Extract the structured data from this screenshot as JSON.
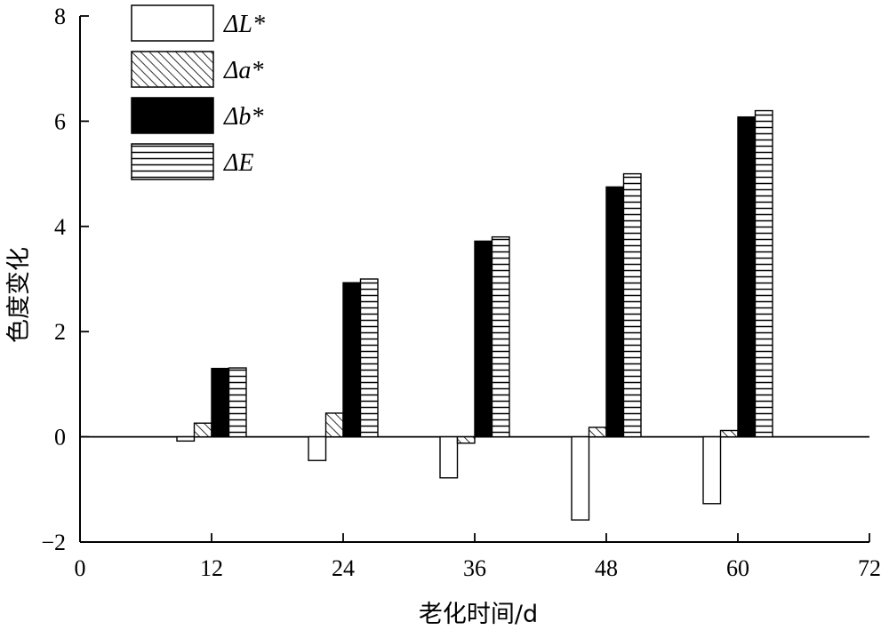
{
  "chart_data": {
    "type": "bar",
    "xlabel": "老化时间/d",
    "ylabel": "色度变化",
    "xlim": [
      0,
      72
    ],
    "ylim": [
      -2,
      8
    ],
    "x_ticks": [
      0,
      12,
      24,
      36,
      48,
      60,
      72
    ],
    "y_ticks": [
      -2,
      0,
      2,
      4,
      6,
      8
    ],
    "y_tick_labels": [
      "−2",
      "0",
      "2",
      "4",
      "6",
      "8"
    ],
    "grid": false,
    "legend_position": "top-left",
    "categories": [
      12,
      24,
      36,
      48,
      60
    ],
    "series": [
      {
        "name": "ΔL*",
        "values": [
          -0.08,
          -0.45,
          -0.78,
          -1.58,
          -1.27
        ],
        "pattern": "white"
      },
      {
        "name": "Δa*",
        "values": [
          0.26,
          0.45,
          -0.12,
          0.18,
          0.12
        ],
        "pattern": "diagonal"
      },
      {
        "name": "Δb*",
        "values": [
          1.3,
          2.93,
          3.72,
          4.75,
          6.08
        ],
        "pattern": "black"
      },
      {
        "name": "ΔE",
        "values": [
          1.31,
          3.0,
          3.8,
          5.0,
          6.2
        ],
        "pattern": "horizontal"
      }
    ]
  }
}
